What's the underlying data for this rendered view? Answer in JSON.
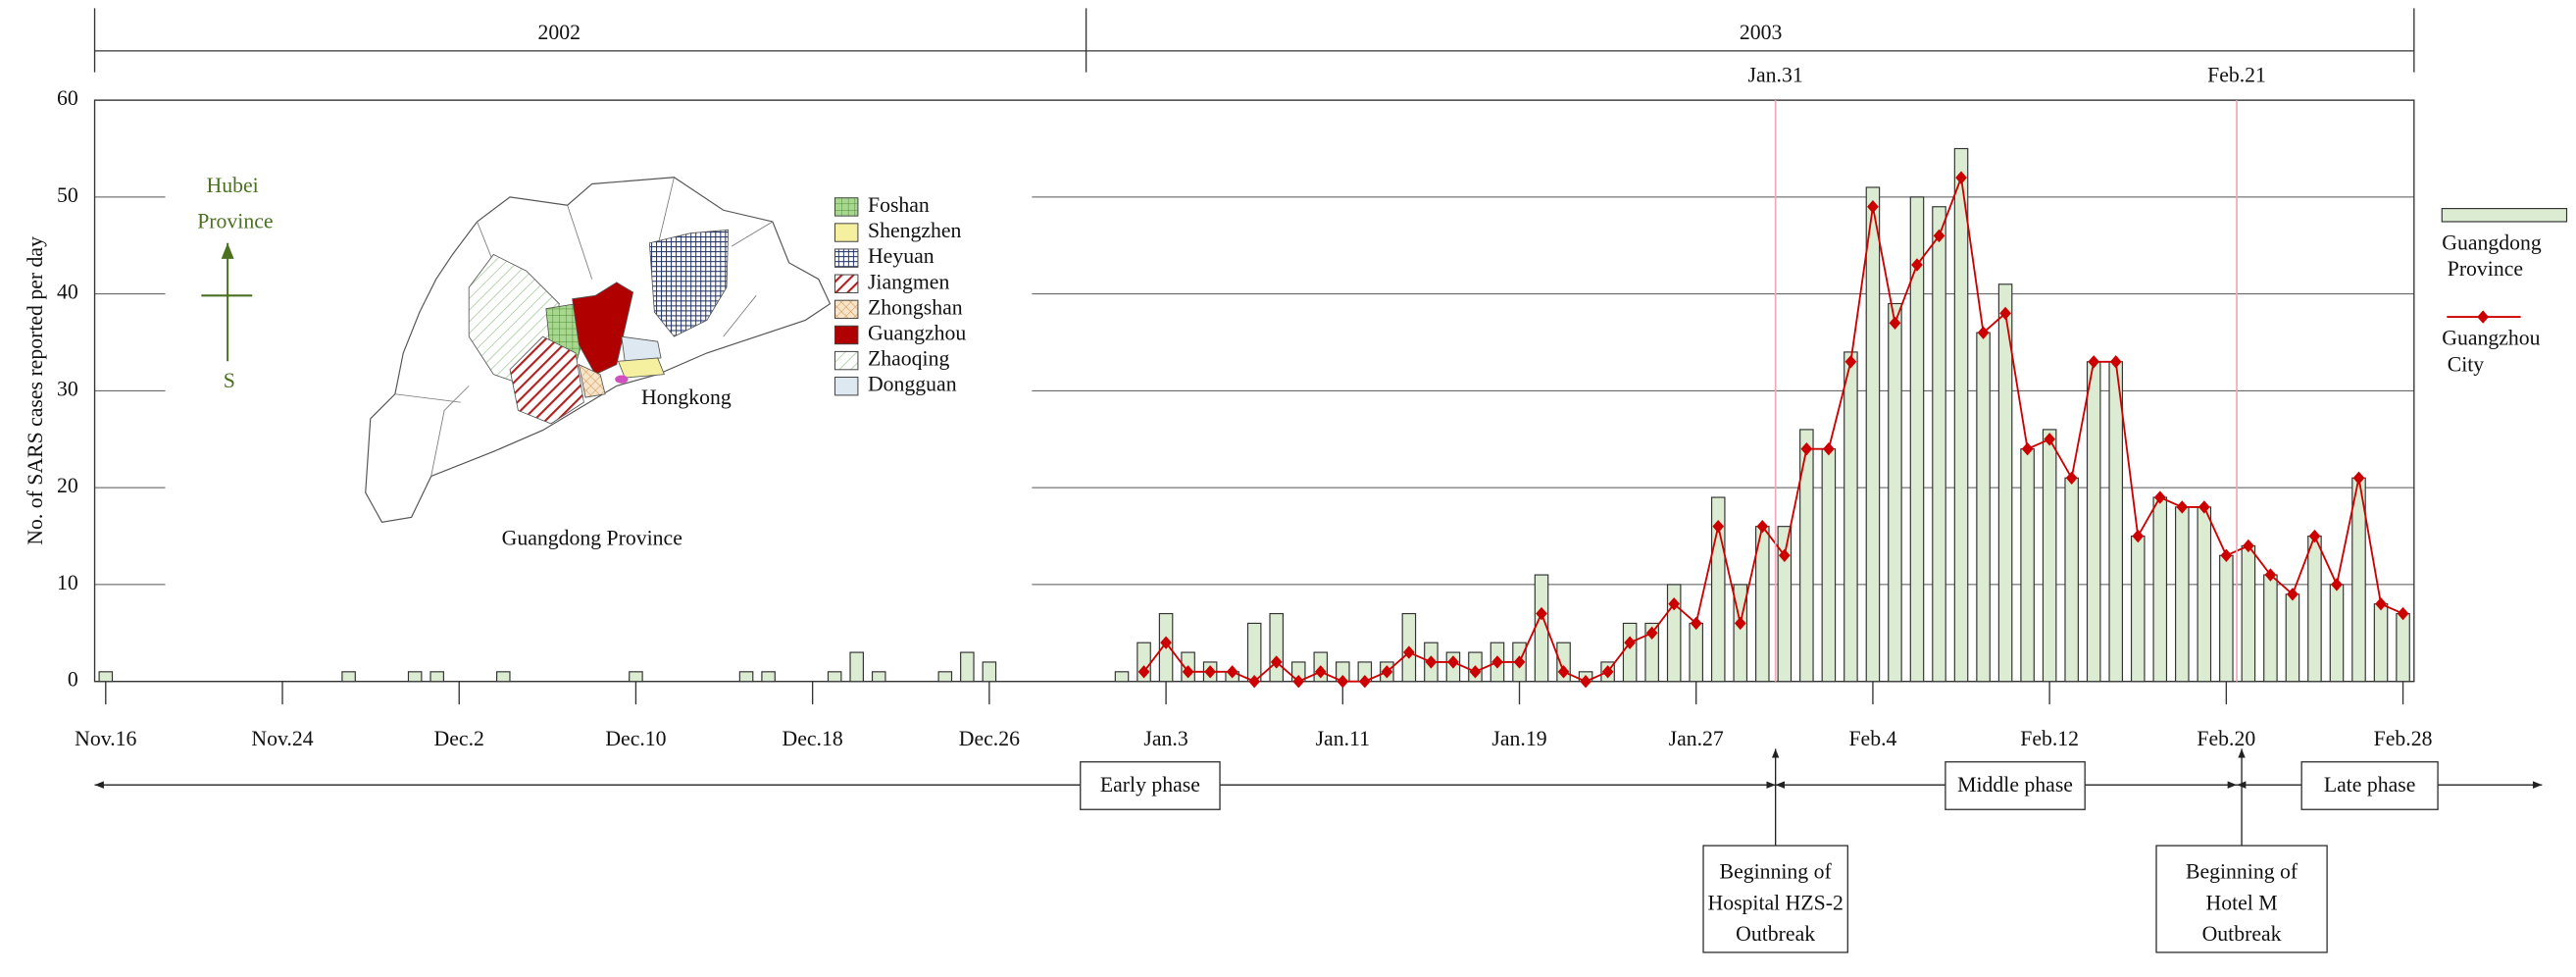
{
  "chart_data": {
    "type": "bar_line",
    "ylabel": "No. of SARS cases reported per day",
    "years": [
      "2002",
      "2003"
    ],
    "reference_lines": [
      "Jan.31",
      "Feb.21"
    ],
    "phases": [
      "Early phase",
      "Middle phase",
      "Late phase"
    ],
    "events": [
      [
        "Beginning of",
        "Hospital HZS-2",
        "Outbreak"
      ],
      [
        "Beginning of",
        "Hotel M",
        "Outbreak"
      ]
    ],
    "categories": [
      "Nov.16",
      null,
      null,
      null,
      null,
      null,
      null,
      null,
      "Nov.24",
      null,
      null,
      null,
      null,
      null,
      null,
      null,
      "Dec.2",
      null,
      null,
      null,
      null,
      null,
      null,
      null,
      "Dec.10",
      null,
      null,
      null,
      null,
      null,
      null,
      null,
      "Dec.18",
      null,
      null,
      null,
      null,
      null,
      null,
      null,
      "Dec.26",
      null,
      null,
      null,
      null,
      null,
      null,
      null,
      "Jan.3",
      null,
      null,
      null,
      null,
      null,
      null,
      null,
      "Jan.11",
      null,
      null,
      null,
      null,
      null,
      null,
      null,
      "Jan.19",
      null,
      null,
      null,
      null,
      null,
      null,
      null,
      "Jan.27",
      null,
      null,
      null,
      null,
      null,
      null,
      null,
      "Feb.4",
      null,
      null,
      null,
      null,
      null,
      null,
      null,
      "Feb.12",
      null,
      null,
      null,
      null,
      null,
      null,
      null,
      "Feb.20",
      null,
      null,
      null,
      null,
      null,
      null,
      null,
      "Feb.28"
    ],
    "series": [
      {
        "name": "Guangdong Province",
        "kind": "bar",
        "color": "#dcecd2",
        "values": [
          1,
          0,
          0,
          0,
          0,
          0,
          0,
          0,
          0,
          0,
          0,
          1,
          0,
          0,
          1,
          1,
          0,
          0,
          1,
          0,
          0,
          0,
          0,
          0,
          1,
          0,
          0,
          0,
          0,
          1,
          1,
          0,
          0,
          1,
          3,
          1,
          0,
          0,
          1,
          3,
          2,
          0,
          0,
          0,
          0,
          0,
          1,
          4,
          7,
          3,
          2,
          1,
          6,
          7,
          2,
          3,
          2,
          2,
          2,
          7,
          4,
          3,
          3,
          4,
          4,
          11,
          4,
          1,
          2,
          6,
          6,
          10,
          6,
          19,
          10,
          16,
          16,
          26,
          24,
          34,
          51,
          39,
          50,
          49,
          55,
          36,
          41,
          24,
          26,
          21,
          33,
          33,
          15,
          19,
          18,
          18,
          13,
          14,
          11,
          9,
          15,
          10,
          21,
          8,
          7
        ]
      },
      {
        "name": "Guangzhou City",
        "kind": "line",
        "color": "#cc0000",
        "values": [
          null,
          null,
          null,
          null,
          null,
          null,
          null,
          null,
          null,
          null,
          null,
          null,
          null,
          null,
          null,
          null,
          null,
          null,
          null,
          null,
          null,
          null,
          null,
          null,
          null,
          null,
          null,
          null,
          null,
          null,
          null,
          null,
          null,
          null,
          null,
          null,
          null,
          null,
          null,
          null,
          null,
          null,
          null,
          null,
          null,
          null,
          null,
          1,
          4,
          1,
          1,
          1,
          0,
          2,
          0,
          1,
          0,
          0,
          1,
          3,
          2,
          2,
          1,
          2,
          2,
          7,
          1,
          0,
          1,
          4,
          5,
          8,
          6,
          16,
          6,
          16,
          13,
          24,
          24,
          33,
          49,
          37,
          43,
          46,
          52,
          36,
          38,
          24,
          25,
          21,
          33,
          33,
          15,
          19,
          18,
          18,
          13,
          14,
          11,
          9,
          15,
          10,
          21,
          8,
          7
        ]
      }
    ],
    "ylim": [
      0,
      60
    ],
    "yticks": [
      0,
      10,
      20,
      30,
      40,
      50,
      60
    ],
    "grid": true,
    "legend": "right",
    "inset": {
      "title": "Guangdong Province",
      "compass_label": "Hubei Province",
      "compass_direction": "S",
      "place_label": "Hongkong",
      "legend": [
        {
          "name": "Foshan",
          "color": "#a8d890"
        },
        {
          "name": "Shengzhen",
          "color": "#f5f0a0"
        },
        {
          "name": "Heyuan",
          "color": "#223366"
        },
        {
          "name": "Jiangmen",
          "color": "#b02020"
        },
        {
          "name": "Zhongshan",
          "color": "#d09050"
        },
        {
          "name": "Guangzhou",
          "color": "#b00000"
        },
        {
          "name": "Zhaoqing",
          "color": "#9ac090"
        },
        {
          "name": "Dongguan",
          "color": "#dde8f0"
        }
      ]
    }
  }
}
